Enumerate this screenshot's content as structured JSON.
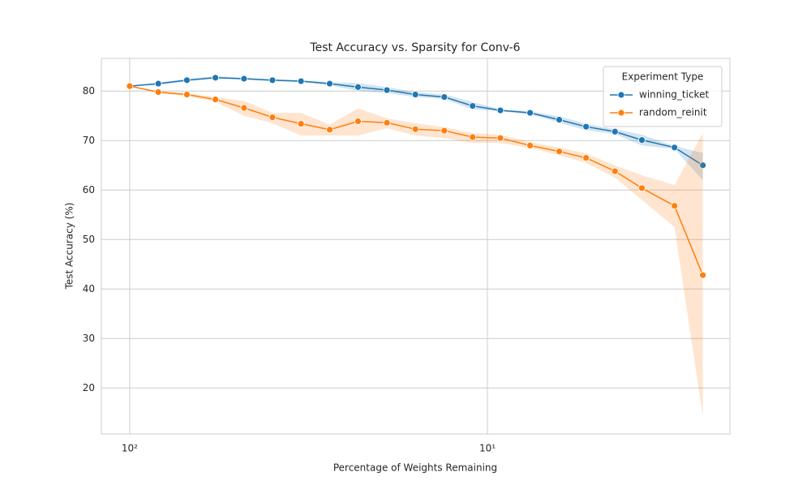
{
  "chart_data": {
    "type": "line",
    "title": "Test Accuracy vs. Sparsity for Conv-6",
    "x_label": "Percentage of Weights Remaining",
    "y_label": "Test Accuracy (%)",
    "x": [
      100,
      83.2,
      69.2,
      57.6,
      47.9,
      39.9,
      33.2,
      27.6,
      23.0,
      19.1,
      15.9,
      13.2,
      11.0,
      9.2,
      7.6,
      6.3,
      5.3,
      4.4,
      3.7,
      3.0,
      2.5
    ],
    "series": [
      {
        "name": "winning_ticket",
        "color": "#1f77b4",
        "values": [
          81.0,
          81.5,
          82.2,
          82.7,
          82.5,
          82.2,
          82.0,
          81.5,
          80.8,
          80.2,
          79.3,
          78.8,
          77.0,
          76.1,
          75.6,
          74.2,
          72.8,
          71.8,
          70.1,
          68.6,
          65.0
        ],
        "band_low": [
          81.0,
          81.2,
          82.0,
          82.5,
          82.3,
          82.0,
          81.8,
          81.2,
          80.0,
          79.6,
          78.8,
          78.4,
          76.3,
          75.9,
          75.3,
          73.6,
          72.1,
          71.3,
          69.0,
          68.3,
          62.0
        ],
        "band_high": [
          81.0,
          81.7,
          82.5,
          83.0,
          82.7,
          82.4,
          82.2,
          81.8,
          81.6,
          80.8,
          79.8,
          79.3,
          77.8,
          76.3,
          75.9,
          74.9,
          73.4,
          72.3,
          71.2,
          68.9,
          67.5
        ]
      },
      {
        "name": "random_reinit",
        "color": "#ff7f0e",
        "values": [
          81.0,
          79.8,
          79.3,
          78.3,
          76.6,
          74.7,
          73.4,
          72.2,
          73.9,
          73.6,
          72.3,
          72.0,
          70.7,
          70.5,
          69.0,
          67.8,
          66.5,
          63.8,
          60.4,
          56.8,
          42.8
        ],
        "band_low": [
          81.0,
          79.5,
          79.0,
          77.8,
          75.0,
          73.5,
          71.0,
          71.0,
          71.0,
          72.5,
          71.0,
          70.5,
          69.5,
          69.5,
          68.5,
          67.0,
          65.5,
          62.5,
          58.0,
          52.5,
          14.3
        ],
        "band_high": [
          81.0,
          80.0,
          79.6,
          78.8,
          78.0,
          75.6,
          75.6,
          73.2,
          76.5,
          74.5,
          73.5,
          72.7,
          71.5,
          71.2,
          69.7,
          68.6,
          67.4,
          65.0,
          63.0,
          61.0,
          71.5
        ]
      }
    ],
    "xscale": "log",
    "xlim": [
      120,
      2.1
    ],
    "xticks": [
      {
        "value": 100,
        "label": "10²"
      },
      {
        "value": 10,
        "label": "10¹"
      }
    ],
    "ylim": [
      10.7,
      86.6
    ],
    "yticks": [
      20,
      30,
      40,
      50,
      60,
      70,
      80
    ],
    "grid": true,
    "legend_title": "Experiment Type",
    "legend_loc": "upper right"
  }
}
